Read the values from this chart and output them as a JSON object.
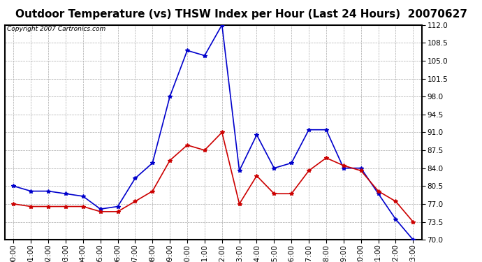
{
  "title": "Outdoor Temperature (vs) THSW Index per Hour (Last 24 Hours)  20070627",
  "copyright_text": "Copyright 2007 Cartronics.com",
  "background_color": "#ffffff",
  "plot_bg_color": "#ffffff",
  "grid_color": "#aaaaaa",
  "hours": [
    0,
    1,
    2,
    3,
    4,
    5,
    6,
    7,
    8,
    9,
    10,
    11,
    12,
    13,
    14,
    15,
    16,
    17,
    18,
    19,
    20,
    21,
    22,
    23
  ],
  "blue_data": [
    80.5,
    79.5,
    79.5,
    79.0,
    78.5,
    76.0,
    76.5,
    82.0,
    85.0,
    98.0,
    107.0,
    106.0,
    112.0,
    83.5,
    90.5,
    84.0,
    85.0,
    91.5,
    91.5,
    84.0,
    84.0,
    79.0,
    74.0,
    70.0
  ],
  "red_data": [
    77.0,
    76.5,
    76.5,
    76.5,
    76.5,
    75.5,
    75.5,
    77.5,
    79.5,
    85.5,
    88.5,
    87.5,
    91.0,
    77.0,
    82.5,
    79.0,
    79.0,
    83.5,
    86.0,
    84.5,
    83.5,
    79.5,
    77.5,
    73.5
  ],
  "blue_color": "#0000cc",
  "red_color": "#cc0000",
  "ylim_min": 70.0,
  "ylim_max": 112.0,
  "yticks": [
    70.0,
    73.5,
    77.0,
    80.5,
    84.0,
    87.5,
    91.0,
    94.5,
    98.0,
    101.5,
    105.0,
    108.5,
    112.0
  ],
  "title_fontsize": 11,
  "copyright_fontsize": 6.5,
  "tick_fontsize": 7.5,
  "marker": "*",
  "marker_size": 4,
  "line_width": 1.2
}
